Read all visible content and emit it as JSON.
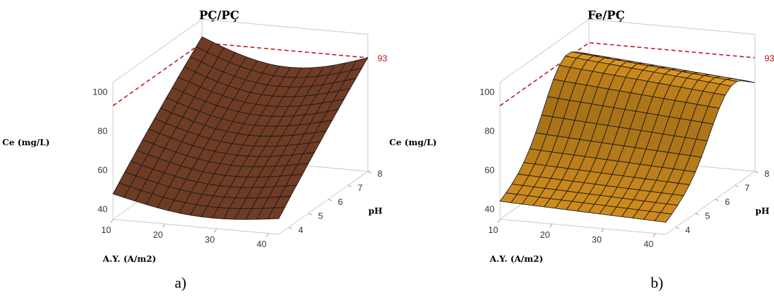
{
  "chart_data": [
    {
      "type": "surface",
      "panel": "a",
      "title": "PÇ/PÇ",
      "zlabel": "Ce (mg/L)",
      "xlabel": "A.Y. (A/m2)",
      "ylabel": "pH",
      "x_ticks": [
        "10",
        "20",
        "30",
        "40"
      ],
      "y_ticks": [
        "4",
        "5",
        "6",
        "7",
        "8"
      ],
      "z_ticks": [
        "40",
        "60",
        "80",
        "100"
      ],
      "xlim": [
        10,
        42
      ],
      "ylim": [
        3.5,
        8
      ],
      "zlim": [
        35,
        105
      ],
      "reference_plane": {
        "value": 93,
        "label": "93",
        "color": "#c0141e",
        "style": "dashed"
      },
      "surface_color": "#8a4a2e",
      "grid_size": [
        15,
        15
      ],
      "corner_values_ce": {
        "x10_pH4": 48,
        "x42_pH4": 43,
        "x10_pH8": 96,
        "x42_pH8": 93
      },
      "caption": "a)"
    },
    {
      "type": "surface",
      "panel": "b",
      "title": "Fe/PÇ",
      "zlabel": "Ce (mg/L)",
      "xlabel": "A.Y. (A/m2)",
      "ylabel": "pH",
      "x_ticks": [
        "10",
        "20",
        "30",
        "40"
      ],
      "y_ticks": [
        "4",
        "5",
        "6",
        "7",
        "8"
      ],
      "z_ticks": [
        "40",
        "60",
        "80",
        "100"
      ],
      "xlim": [
        10,
        42
      ],
      "ylim": [
        3.5,
        8
      ],
      "zlim": [
        35,
        105
      ],
      "reference_plane": {
        "value": 93,
        "label": "93",
        "color": "#c0141e",
        "style": "dashed"
      },
      "surface_color": "#f6a623",
      "grid_size": [
        15,
        15
      ],
      "corner_values_ce": {
        "x10_pH4": 44,
        "x42_pH4": 44,
        "x10_pH8": 71,
        "x42_pH8": 71
      },
      "ridge_peak_ce": 93,
      "caption": "b)"
    }
  ]
}
